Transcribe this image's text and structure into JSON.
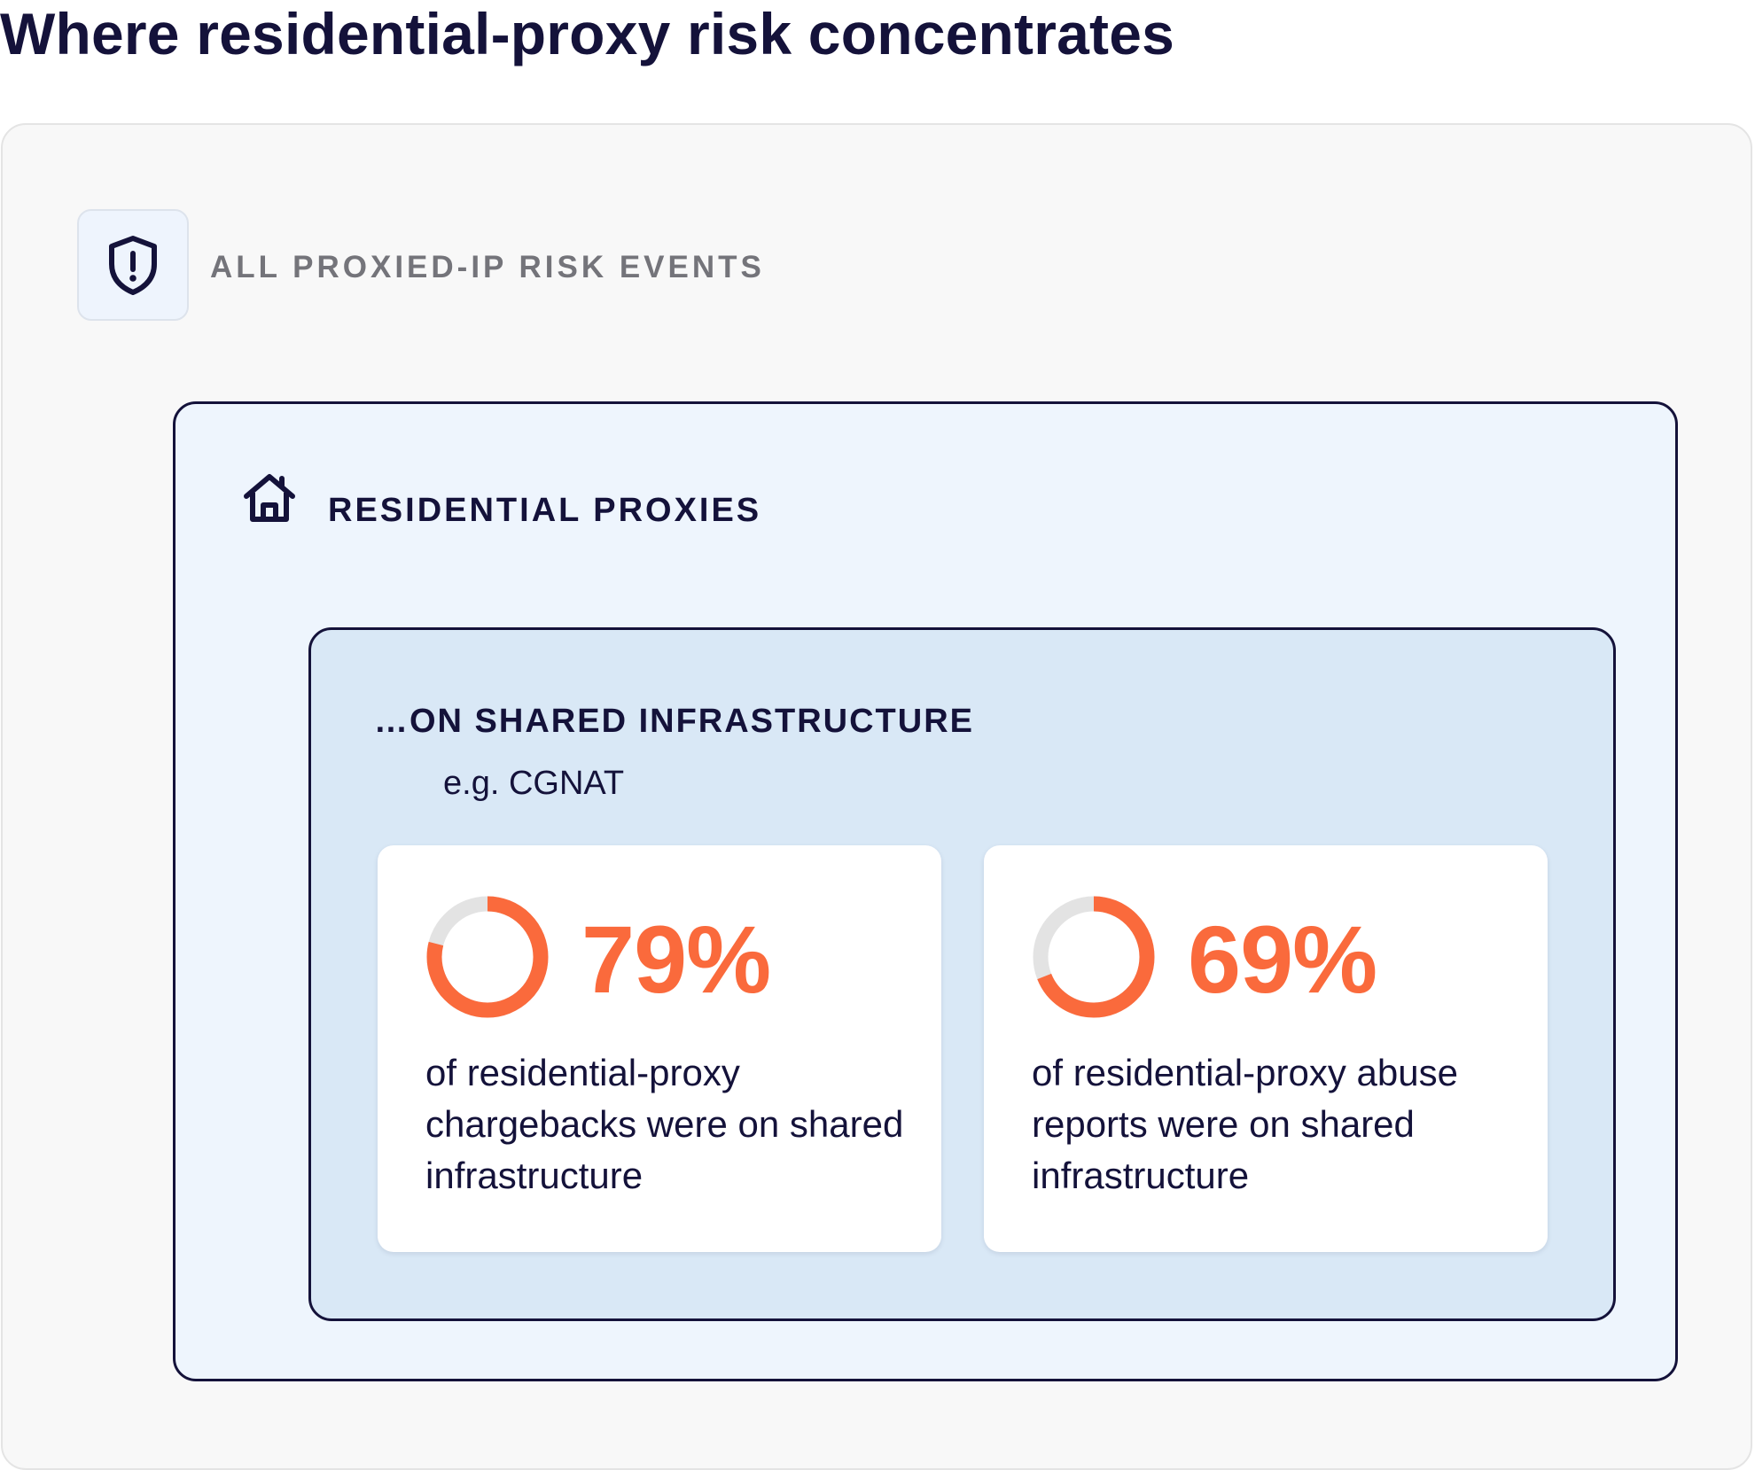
{
  "title": "Where residential-proxy risk concentrates",
  "outer": {
    "label": "ALL PROXIED-IP RISK EVENTS",
    "icon": "shield-alert-icon"
  },
  "middle": {
    "label": "RESIDENTIAL PROXIES",
    "icon": "house-icon"
  },
  "inner": {
    "label": "…ON SHARED INFRASTRUCTURE",
    "sublabel": "e.g. CGNAT"
  },
  "stats": [
    {
      "value": "79%",
      "percent": 79,
      "description": "of residential-proxy chargebacks were on shared infrastructure"
    },
    {
      "value": "69%",
      "percent": 69,
      "description": "of residential-proxy abuse reports were on shared infrastructure"
    }
  ],
  "colors": {
    "accent": "#fa6a3c",
    "ring_track": "#e3e3e3",
    "text": "#14123a",
    "muted": "#74747a"
  }
}
